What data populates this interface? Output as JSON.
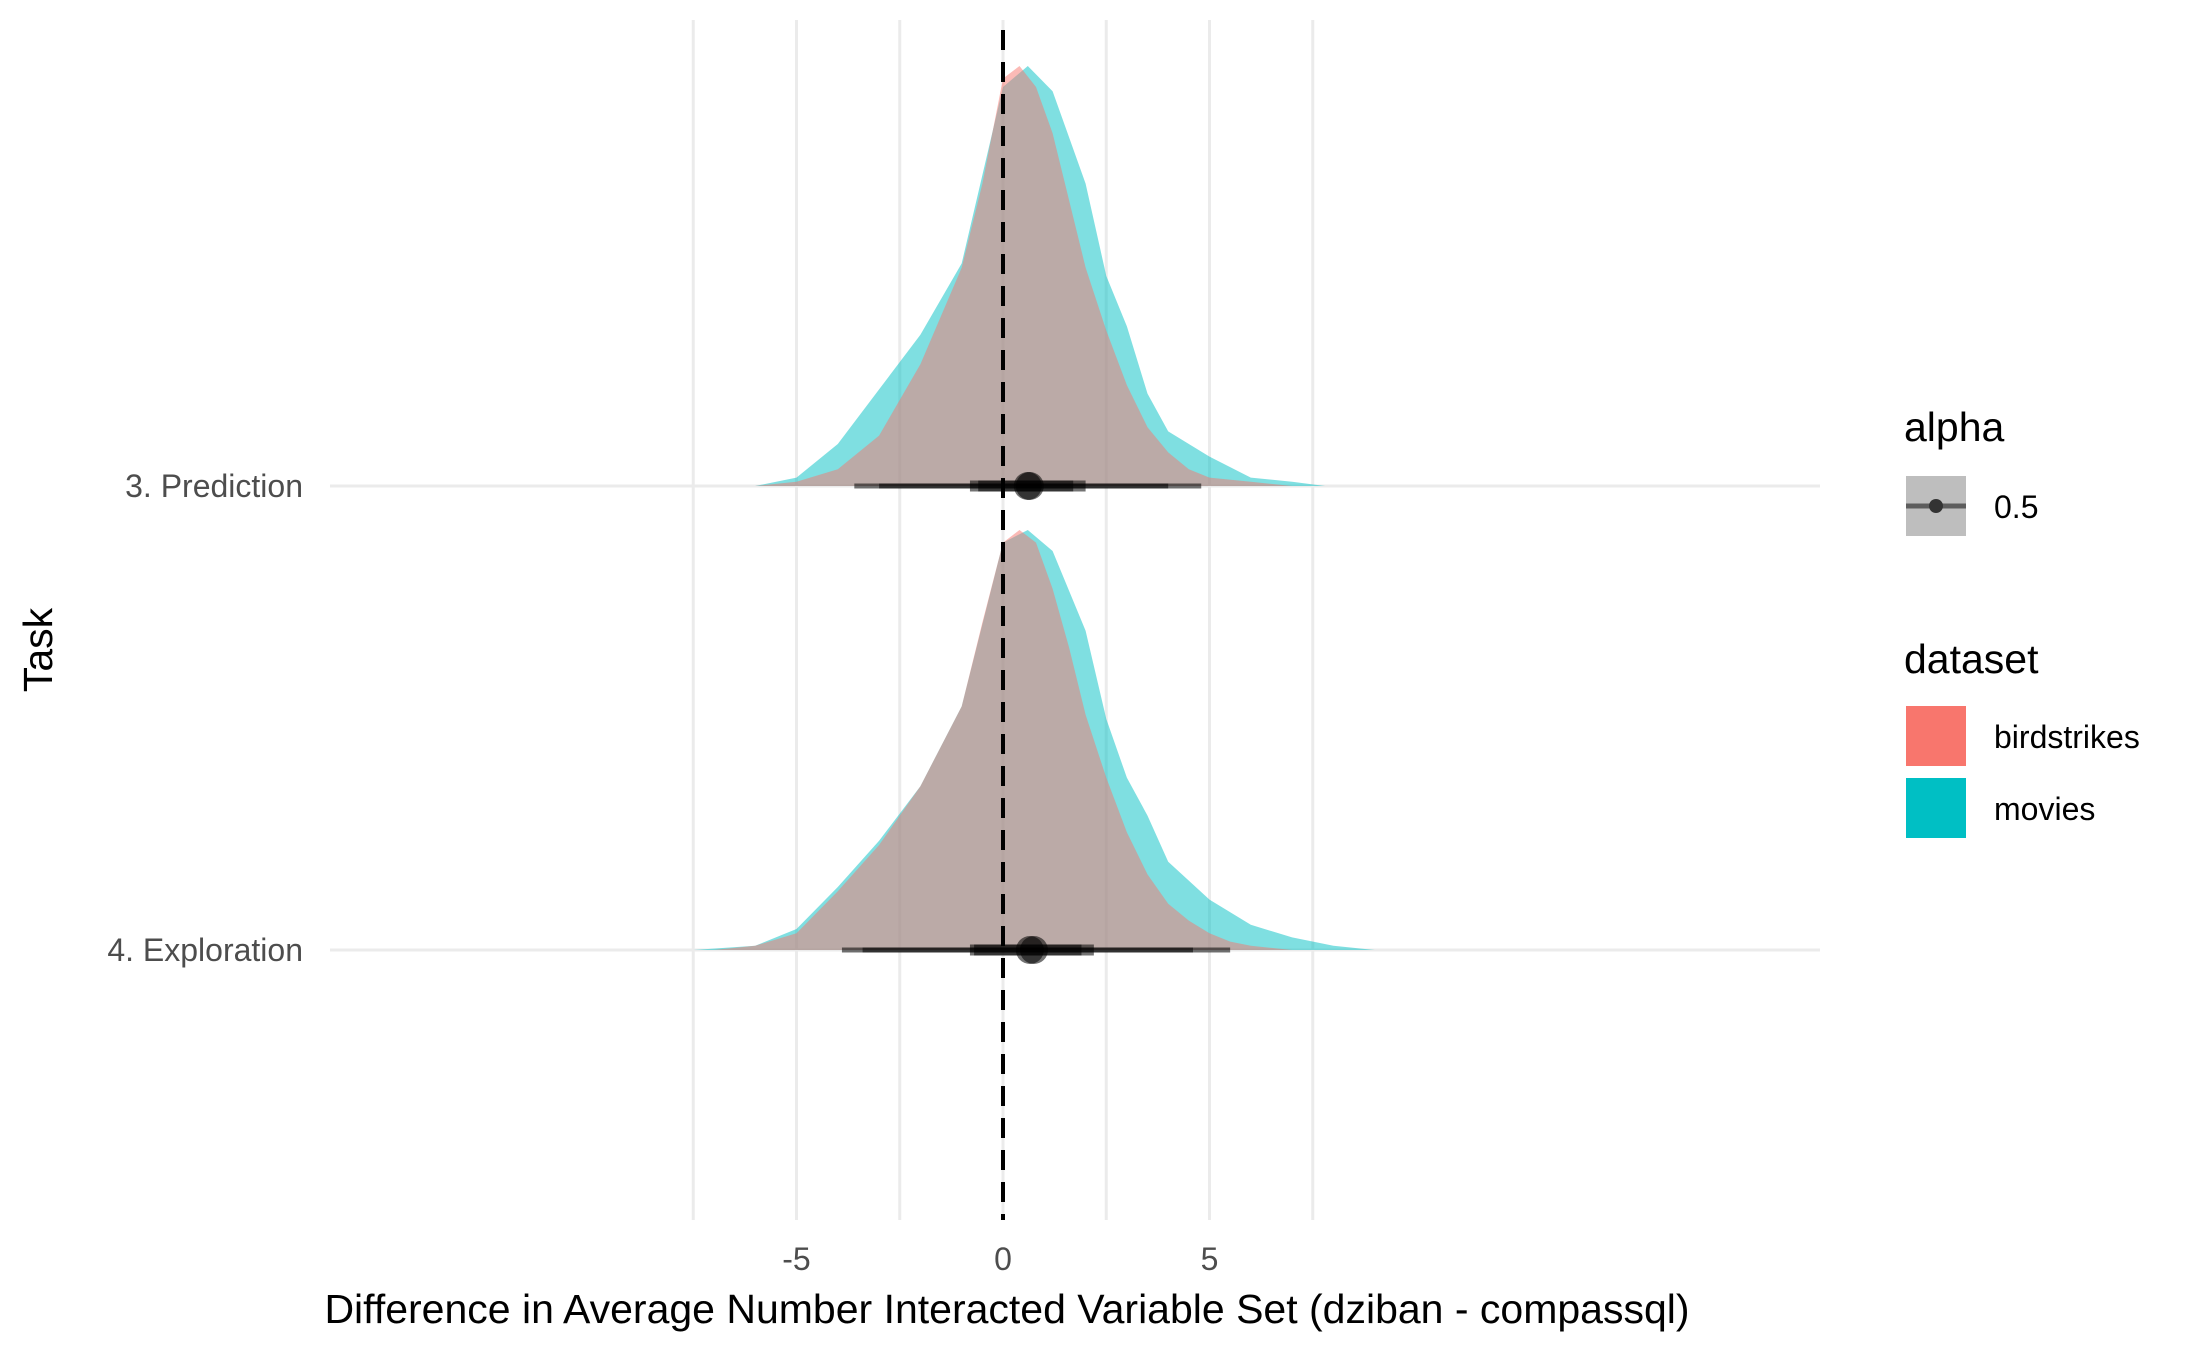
{
  "chart_data": {
    "type": "area",
    "subtype": "half-eye density ridgeline with interval summaries",
    "xlabel": "Difference in Average Number Interacted Variable Set (dziban - compassql)",
    "ylabel": "Task",
    "xlim": [
      -10,
      10
    ],
    "x_ticks": [
      -5,
      0,
      5
    ],
    "x_tick_labels": [
      "-5",
      "0",
      "5"
    ],
    "x_minor_gridlines": [
      -7.5,
      -2.5,
      2.5,
      7.5
    ],
    "reference_line": {
      "x": 0,
      "style": "dashed"
    },
    "grid": true,
    "categories": [
      "3. Prediction",
      "4. Exploration"
    ],
    "series": [
      {
        "name": "birdstrikes",
        "color": "#F8766D",
        "densities": [
          {
            "task": "3. Prediction",
            "x": [
              -6.0,
              -5.0,
              -4.0,
              -3.0,
              -2.0,
              -1.0,
              -0.5,
              0.0,
              0.4,
              0.8,
              1.2,
              1.6,
              2.0,
              2.5,
              3.0,
              3.5,
              4.0,
              4.5,
              5.0,
              6.0,
              7.0
            ],
            "density": [
              0.0,
              0.01,
              0.04,
              0.12,
              0.29,
              0.52,
              0.72,
              0.97,
              1.0,
              0.95,
              0.84,
              0.68,
              0.52,
              0.37,
              0.24,
              0.14,
              0.08,
              0.04,
              0.02,
              0.01,
              0.0
            ]
          },
          {
            "task": "4. Exploration",
            "x": [
              -7.0,
              -6.0,
              -5.0,
              -4.0,
              -3.0,
              -2.0,
              -1.0,
              -0.5,
              0.0,
              0.4,
              0.8,
              1.2,
              1.6,
              2.0,
              2.5,
              3.0,
              3.5,
              4.0,
              4.5,
              5.0,
              5.5,
              6.0,
              7.0,
              8.0
            ],
            "density": [
              0.0,
              0.01,
              0.04,
              0.14,
              0.25,
              0.39,
              0.58,
              0.78,
              0.97,
              1.0,
              0.97,
              0.86,
              0.72,
              0.56,
              0.41,
              0.28,
              0.18,
              0.11,
              0.07,
              0.04,
              0.02,
              0.01,
              0.0,
              0.0
            ]
          }
        ]
      },
      {
        "name": "movies",
        "color": "#00BFC4",
        "densities": [
          {
            "task": "3. Prediction",
            "x": [
              -6.0,
              -5.0,
              -4.0,
              -3.0,
              -2.0,
              -1.0,
              0.0,
              0.6,
              1.2,
              2.0,
              2.5,
              3.0,
              3.5,
              4.0,
              5.0,
              6.0,
              7.0,
              7.8
            ],
            "density": [
              0.0,
              0.02,
              0.1,
              0.23,
              0.36,
              0.53,
              0.95,
              1.0,
              0.94,
              0.72,
              0.5,
              0.38,
              0.22,
              0.13,
              0.07,
              0.02,
              0.01,
              0.0
            ]
          },
          {
            "task": "4. Exploration",
            "x": [
              -7.5,
              -6.0,
              -5.0,
              -4.0,
              -3.0,
              -2.0,
              -1.0,
              0.0,
              0.6,
              1.2,
              2.0,
              2.5,
              3.0,
              3.5,
              4.0,
              5.0,
              6.0,
              7.0,
              8.0,
              9.0
            ],
            "density": [
              0.0,
              0.01,
              0.05,
              0.15,
              0.26,
              0.39,
              0.58,
              0.97,
              1.0,
              0.95,
              0.76,
              0.55,
              0.41,
              0.32,
              0.21,
              0.12,
              0.06,
              0.03,
              0.01,
              0.0
            ]
          }
        ]
      }
    ],
    "intervals": [
      {
        "task": "3. Prediction",
        "groups": [
          {
            "dataset": "birdstrikes",
            "point": 0.6,
            "inner": [
              -0.6,
              1.7
            ],
            "outer": [
              -3.0,
              4.0
            ]
          },
          {
            "dataset": "movies",
            "point": 0.65,
            "inner": [
              -0.8,
              2.0
            ],
            "outer": [
              -3.6,
              4.8
            ]
          }
        ]
      },
      {
        "task": "4. Exploration",
        "groups": [
          {
            "dataset": "birdstrikes",
            "point": 0.65,
            "inner": [
              -0.7,
              1.9
            ],
            "outer": [
              -3.4,
              4.6
            ]
          },
          {
            "dataset": "movies",
            "point": 0.75,
            "inner": [
              -0.8,
              2.2
            ],
            "outer": [
              -3.9,
              5.5
            ]
          }
        ]
      }
    ],
    "legend": {
      "placement": "right",
      "alpha": {
        "title": "alpha",
        "label": "0.5"
      },
      "dataset": {
        "title": "dataset",
        "entries": [
          {
            "label": "birdstrikes",
            "color": "#F8766D"
          },
          {
            "label": "movies",
            "color": "#00BFC4"
          }
        ]
      }
    },
    "colors": {
      "gridline": "#ebebeb",
      "tick_text": "#4d4d4d",
      "interval": "#000000"
    }
  }
}
